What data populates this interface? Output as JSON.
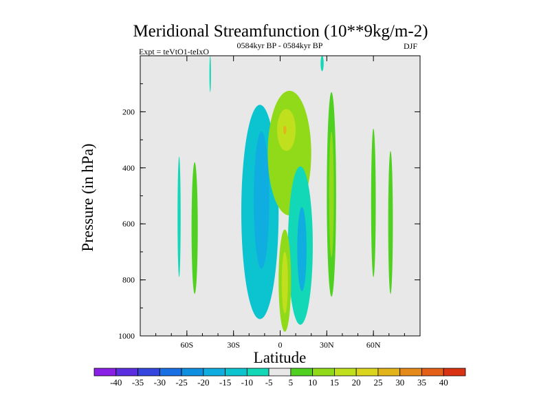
{
  "chart_data": {
    "type": "contour",
    "title": "Meridional Streamfunction (10**9kg/m-2)",
    "left_label": "Expt = teVtO1-teIxO",
    "center_label": "0584kyr BP - 0584kyr BP",
    "right_label": "DJF",
    "xlabel": "Latitude",
    "ylabel": "Pressure (in hPa)",
    "xlim": [
      -90,
      90
    ],
    "ylim": [
      1000,
      0
    ],
    "x_ticks": [
      {
        "value": -60,
        "label": "60S"
      },
      {
        "value": -30,
        "label": "30S"
      },
      {
        "value": 0,
        "label": "0"
      },
      {
        "value": 30,
        "label": "30N"
      },
      {
        "value": 60,
        "label": "60N"
      }
    ],
    "y_ticks": [
      {
        "value": 200,
        "label": "200"
      },
      {
        "value": 400,
        "label": "400"
      },
      {
        "value": 600,
        "label": "600"
      },
      {
        "value": 800,
        "label": "800"
      },
      {
        "value": 1000,
        "label": "1000"
      }
    ],
    "cells": [
      {
        "lat": -13,
        "p": 510,
        "value": -12,
        "width": 24,
        "top": 175,
        "bottom": 940
      },
      {
        "lat": -12,
        "p": 480,
        "value": -18,
        "width": 10,
        "top": 270,
        "bottom": 760
      },
      {
        "lat": 6,
        "p": 260,
        "value": 10,
        "width": 28,
        "top": 125,
        "bottom": 570
      },
      {
        "lat": 4,
        "p": 270,
        "value": 17,
        "width": 12,
        "top": 190,
        "bottom": 340
      },
      {
        "lat": 3,
        "p": 260,
        "value": 26,
        "width": 2,
        "top": 250,
        "bottom": 280
      },
      {
        "lat": 13,
        "p": 600,
        "value": -9,
        "width": 16,
        "top": 395,
        "bottom": 960
      },
      {
        "lat": 14,
        "p": 680,
        "value": -16,
        "width": 6,
        "top": 540,
        "bottom": 840
      },
      {
        "lat": 3,
        "p": 800,
        "value": 11,
        "width": 8,
        "top": 620,
        "bottom": 985
      },
      {
        "lat": 3,
        "p": 820,
        "value": 16,
        "width": 4,
        "top": 700,
        "bottom": 920
      },
      {
        "lat": 33,
        "p": 380,
        "value": 9,
        "width": 6,
        "top": 130,
        "bottom": 860
      },
      {
        "lat": 33,
        "p": 470,
        "value": 13,
        "width": 3,
        "top": 270,
        "bottom": 720
      },
      {
        "lat": -55,
        "p": 580,
        "value": 8,
        "width": 4,
        "top": 380,
        "bottom": 850
      },
      {
        "lat": -65,
        "p": 580,
        "value": -7,
        "width": 2,
        "top": 360,
        "bottom": 790
      },
      {
        "lat": 60,
        "p": 540,
        "value": 8,
        "width": 3,
        "top": 260,
        "bottom": 790
      },
      {
        "lat": 71,
        "p": 600,
        "value": 8,
        "width": 3,
        "top": 340,
        "bottom": 850
      },
      {
        "lat": -45,
        "p": 60,
        "value": -6,
        "width": 1,
        "top": 0,
        "bottom": 130
      },
      {
        "lat": 27,
        "p": 20,
        "value": -6,
        "width": 2,
        "top": 0,
        "bottom": 55
      }
    ],
    "colorbar": {
      "labels": [
        "-40",
        "-35",
        "-30",
        "-25",
        "-20",
        "-15",
        "-10",
        "-5",
        "5",
        "10",
        "15",
        "20",
        "25",
        "30",
        "35",
        "40"
      ],
      "colors": [
        "#8a1fe6",
        "#5b2ee0",
        "#3446de",
        "#1a6fe3",
        "#0f8fe0",
        "#10aee0",
        "#0cc4d0",
        "#12d8b7",
        "#e8e8e8",
        "#50d020",
        "#90da1a",
        "#c0df1c",
        "#dcd51e",
        "#e2b41a",
        "#e48a1a",
        "#e26018",
        "#d83212"
      ]
    }
  }
}
